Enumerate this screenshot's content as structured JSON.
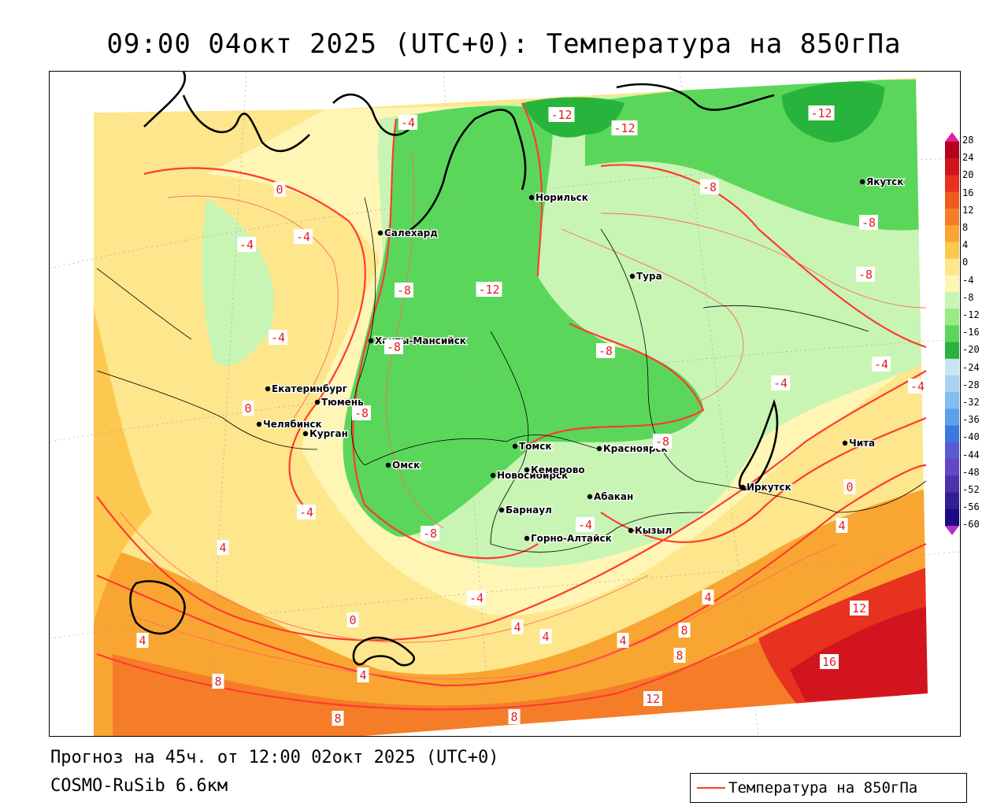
{
  "title": "09:00 04окт 2025 (UTC+0): Температура на 850гПа",
  "footer": {
    "forecast": "Прогноз на 45ч. от 12:00 02окт 2025 (UTC+0)",
    "model": "COSMO-RuSib 6.6км"
  },
  "legend": {
    "label": "Температура на 850гПа",
    "line_color": "#ff3b30"
  },
  "colorbar": {
    "labels": [
      "28",
      "24",
      "20",
      "16",
      "12",
      "8",
      "4",
      "0",
      "-4",
      "-8",
      "-12",
      "-16",
      "-20",
      "-24",
      "-28",
      "-32",
      "-36",
      "-40",
      "-44",
      "-48",
      "-52",
      "-56",
      "-60"
    ],
    "colors": [
      "#b4001e",
      "#d2141e",
      "#e6321e",
      "#f05a1e",
      "#f57d28",
      "#f9a532",
      "#fcc850",
      "#fde68c",
      "#fff5b4",
      "#c8f5b4",
      "#96eb82",
      "#5ad75a",
      "#28b43c",
      "#c8e6f0",
      "#aad2f5",
      "#82bef0",
      "#5aa0eb",
      "#3c78e1",
      "#5a5ad2",
      "#6446c8",
      "#4b32aa",
      "#321e96",
      "#1e0a82"
    ],
    "top_color": "#e61ea0",
    "bottom_color": "#b432c8"
  },
  "cities": [
    {
      "name": "Салехард"
    },
    {
      "name": "Норильск"
    },
    {
      "name": "Якутск"
    },
    {
      "name": "Тура"
    },
    {
      "name": "Ханты-Мансийск"
    },
    {
      "name": "Екатеринбург"
    },
    {
      "name": "Тюмень"
    },
    {
      "name": "Челябинск"
    },
    {
      "name": "Курган"
    },
    {
      "name": "Омск"
    },
    {
      "name": "Новосибирск"
    },
    {
      "name": "Томск"
    },
    {
      "name": "Красноярск"
    },
    {
      "name": "Кемерово"
    },
    {
      "name": "Абакан"
    },
    {
      "name": "Барнаул"
    },
    {
      "name": "Горно-Алтайск"
    },
    {
      "name": "Кызыл"
    },
    {
      "name": "Иркутск"
    },
    {
      "name": "Чита"
    }
  ],
  "contour_labels": [
    "-4",
    "-12",
    "-12",
    "-12",
    "0",
    "-4",
    "-4",
    "-8",
    "-8",
    "-4",
    "-12",
    "-8",
    "-8",
    "-8",
    "-8",
    "-4",
    "-4",
    "-4",
    "-8",
    "0",
    "-4",
    "4",
    "0",
    "4",
    "4",
    "8",
    "12",
    "4",
    "8",
    "8",
    "16",
    "8",
    "12",
    "8",
    "4",
    "-4",
    "-8",
    "4",
    "-8",
    "0",
    "-4",
    "4",
    "4"
  ],
  "colors": {
    "contour": "#ff3b30",
    "label_text": "#e0201e"
  }
}
